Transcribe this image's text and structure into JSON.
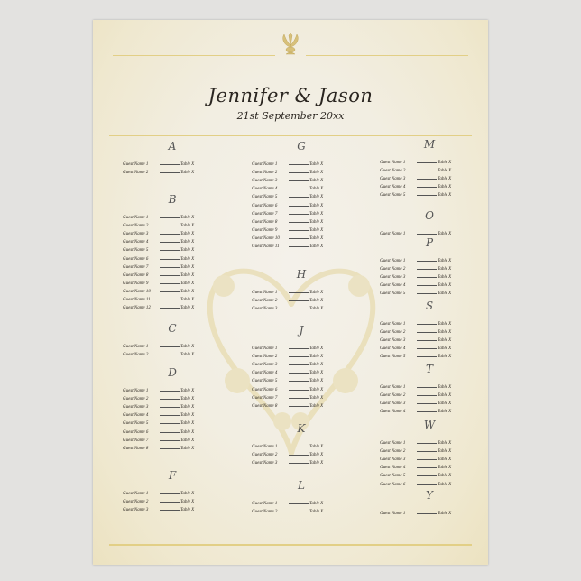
{
  "title": "Jennifer & Jason",
  "date": "21st September 20xx",
  "colors": {
    "parchment": "#efe8cf",
    "gold": "#e2cf86",
    "ink": "#2a2520"
  },
  "icons": {
    "top": "palmette-ornament-icon",
    "center": "floral-heart-watermark"
  },
  "columns": [
    [
      {
        "letter": "A",
        "guests": [
          [
            "Guest Name 1",
            "Table X"
          ],
          [
            "Guest Name 2",
            "Table X"
          ]
        ]
      },
      {
        "letter": "B",
        "guests": [
          [
            "Guest Name 1",
            "Table X"
          ],
          [
            "Guest Name 2",
            "Table X"
          ],
          [
            "Guest Name 3",
            "Table X"
          ],
          [
            "Guest Name 4",
            "Table X"
          ],
          [
            "Guest Name 5",
            "Table X"
          ],
          [
            "Guest Name 6",
            "Table X"
          ],
          [
            "Guest Name 7",
            "Table X"
          ],
          [
            "Guest Name 8",
            "Table X"
          ],
          [
            "Guest Name 9",
            "Table X"
          ],
          [
            "Guest Name 10",
            "Table X"
          ],
          [
            "Guest Name 11",
            "Table X"
          ],
          [
            "Guest Name 12",
            "Table X"
          ]
        ]
      },
      {
        "letter": "C",
        "guests": [
          [
            "Guest Name 1",
            "Table X"
          ],
          [
            "Guest Name 2",
            "Table X"
          ]
        ]
      },
      {
        "letter": "D",
        "guests": [
          [
            "Guest Name 1",
            "Table X"
          ],
          [
            "Guest Name 2",
            "Table X"
          ],
          [
            "Guest Name 3",
            "Table X"
          ],
          [
            "Guest Name 4",
            "Table X"
          ],
          [
            "Guest Name 5",
            "Table X"
          ],
          [
            "Guest Name 6",
            "Table X"
          ],
          [
            "Guest Name 7",
            "Table X"
          ],
          [
            "Guest Name 8",
            "Table X"
          ]
        ]
      },
      {
        "letter": "F",
        "guests": [
          [
            "Guest Name 1",
            "Table X"
          ],
          [
            "Guest Name 2",
            "Table X"
          ],
          [
            "Guest Name 3",
            "Table X"
          ]
        ]
      }
    ],
    [
      {
        "letter": "G",
        "guests": [
          [
            "Guest Name 1",
            "Table X"
          ],
          [
            "Guest Name 2",
            "Table X"
          ],
          [
            "Guest Name 3",
            "Table X"
          ],
          [
            "Guest Name 4",
            "Table X"
          ],
          [
            "Guest Name 5",
            "Table X"
          ],
          [
            "Guest Name 6",
            "Table X"
          ],
          [
            "Guest Name 7",
            "Table X"
          ],
          [
            "Guest Name 8",
            "Table X"
          ],
          [
            "Guest Name 9",
            "Table X"
          ],
          [
            "Guest Name 10",
            "Table X"
          ],
          [
            "Guest Name 11",
            "Table X"
          ]
        ]
      },
      {
        "letter": "H",
        "guests": [
          [
            "Guest Name 1",
            "Table X"
          ],
          [
            "Guest Name 2",
            "Table X"
          ],
          [
            "Guest Name 3",
            "Table X"
          ]
        ]
      },
      {
        "letter": "J",
        "guests": [
          [
            "Guest Name 1",
            "Table X"
          ],
          [
            "Guest Name 2",
            "Table X"
          ],
          [
            "Guest Name 3",
            "Table X"
          ],
          [
            "Guest Name 4",
            "Table X"
          ],
          [
            "Guest Name 5",
            "Table X"
          ],
          [
            "Guest Name 6",
            "Table X"
          ],
          [
            "Guest Name 7",
            "Table X"
          ],
          [
            "Guest Name 8",
            "Table X"
          ]
        ]
      },
      {
        "letter": "K",
        "guests": [
          [
            "Guest Name 1",
            "Table X"
          ],
          [
            "Guest Name 2",
            "Table X"
          ],
          [
            "Guest Name 3",
            "Table X"
          ]
        ]
      },
      {
        "letter": "L",
        "guests": [
          [
            "Guest Name 1",
            "Table X"
          ],
          [
            "Guest Name 2",
            "Table X"
          ]
        ]
      }
    ],
    [
      {
        "letter": "M",
        "guests": [
          [
            "Guest Name 1",
            "Table X"
          ],
          [
            "Guest Name 2",
            "Table X"
          ],
          [
            "Guest Name 3",
            "Table X"
          ],
          [
            "Guest Name 4",
            "Table X"
          ],
          [
            "Guest Name 5",
            "Table X"
          ]
        ]
      },
      {
        "letter": "O",
        "guests": [
          [
            "Guest Name 1",
            "Table X"
          ]
        ]
      },
      {
        "letter": "P",
        "guests": [
          [
            "Guest Name 1",
            "Table X"
          ],
          [
            "Guest Name 2",
            "Table X"
          ],
          [
            "Guest Name 3",
            "Table X"
          ],
          [
            "Guest Name 4",
            "Table X"
          ],
          [
            "Guest Name 5",
            "Table X"
          ]
        ]
      },
      {
        "letter": "S",
        "guests": [
          [
            "Guest Name 1",
            "Table X"
          ],
          [
            "Guest Name 2",
            "Table X"
          ],
          [
            "Guest Name 3",
            "Table X"
          ],
          [
            "Guest Name 4",
            "Table X"
          ],
          [
            "Guest Name 5",
            "Table X"
          ]
        ]
      },
      {
        "letter": "T",
        "guests": [
          [
            "Guest Name 1",
            "Table X"
          ],
          [
            "Guest Name 2",
            "Table X"
          ],
          [
            "Guest Name 3",
            "Table X"
          ],
          [
            "Guest Name 4",
            "Table X"
          ]
        ]
      },
      {
        "letter": "W",
        "guests": [
          [
            "Guest Name 1",
            "Table X"
          ],
          [
            "Guest Name 2",
            "Table X"
          ],
          [
            "Guest Name 3",
            "Table X"
          ],
          [
            "Guest Name 4",
            "Table X"
          ],
          [
            "Guest Name 5",
            "Table X"
          ],
          [
            "Guest Name 6",
            "Table X"
          ]
        ]
      },
      {
        "letter": "Y",
        "guests": [
          [
            "Guest Name 1",
            "Table X"
          ]
        ]
      }
    ]
  ]
}
